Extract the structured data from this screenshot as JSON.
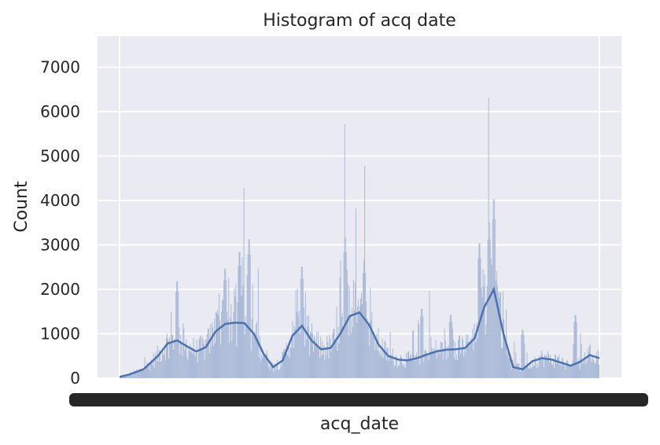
{
  "chart_data": {
    "type": "histogram",
    "title": "Histogram of acq date",
    "xlabel": "acq_date",
    "ylabel": "Count",
    "ylim": [
      0,
      7700
    ],
    "yticks": [
      0,
      1000,
      2000,
      3000,
      4000,
      5000,
      6000,
      7000
    ],
    "xlim": [
      0,
      1
    ],
    "grid": true,
    "background": "#eaeaf2",
    "grid_color": "#ffffff",
    "bar_color": "#a8b8d6",
    "kde_color": "#4c72b0",
    "x_tick_labels_note": "overlapping date tick labels rendered as an illegible black band",
    "histogram_peaks": [
      {
        "x": 0.12,
        "count": 2300
      },
      {
        "x": 0.22,
        "count": 2600
      },
      {
        "x": 0.25,
        "count": 3000
      },
      {
        "x": 0.27,
        "count": 3300
      },
      {
        "x": 0.38,
        "count": 2650
      },
      {
        "x": 0.47,
        "count": 3350
      },
      {
        "x": 0.51,
        "count": 2800
      },
      {
        "x": 0.63,
        "count": 1650
      },
      {
        "x": 0.69,
        "count": 1500
      },
      {
        "x": 0.75,
        "count": 3200
      },
      {
        "x": 0.77,
        "count": 3700
      },
      {
        "x": 0.78,
        "count": 4250
      },
      {
        "x": 0.84,
        "count": 1150
      },
      {
        "x": 0.95,
        "count": 1500
      }
    ],
    "kde_line": {
      "x": [
        0.0,
        0.02,
        0.05,
        0.08,
        0.1,
        0.12,
        0.14,
        0.16,
        0.18,
        0.2,
        0.22,
        0.24,
        0.26,
        0.28,
        0.3,
        0.32,
        0.34,
        0.36,
        0.38,
        0.4,
        0.42,
        0.44,
        0.46,
        0.48,
        0.5,
        0.52,
        0.54,
        0.56,
        0.58,
        0.6,
        0.62,
        0.64,
        0.66,
        0.68,
        0.7,
        0.72,
        0.74,
        0.76,
        0.78,
        0.8,
        0.82,
        0.84,
        0.86,
        0.88,
        0.9,
        0.92,
        0.94,
        0.96,
        0.98,
        1.0
      ],
      "y": [
        30,
        80,
        200,
        500,
        780,
        850,
        720,
        600,
        700,
        1050,
        1220,
        1250,
        1240,
        1000,
        550,
        250,
        400,
        950,
        1180,
        850,
        650,
        680,
        1000,
        1400,
        1480,
        1200,
        750,
        500,
        420,
        400,
        450,
        530,
        600,
        640,
        650,
        680,
        900,
        1600,
        2000,
        1000,
        250,
        200,
        380,
        450,
        420,
        350,
        280,
        370,
        520,
        450
      ]
    }
  }
}
